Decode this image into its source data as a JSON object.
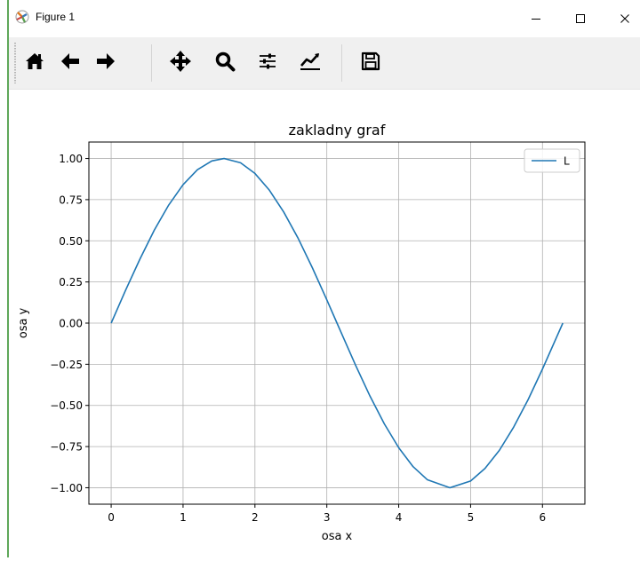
{
  "window": {
    "title": "Figure 1",
    "icons": {
      "app": "matplotlib-figure-icon",
      "minimize": "minimize-icon",
      "maximize": "maximize-icon",
      "close": "close-icon"
    }
  },
  "toolbar": {
    "buttons": [
      {
        "name": "home-button",
        "icon": "home-icon"
      },
      {
        "name": "back-button",
        "icon": "arrow-left-icon"
      },
      {
        "name": "forward-button",
        "icon": "arrow-right-icon"
      },
      {
        "name": "pan-button",
        "icon": "move-icon"
      },
      {
        "name": "zoom-button",
        "icon": "magnifier-icon"
      },
      {
        "name": "configure-subplots-button",
        "icon": "sliders-icon"
      },
      {
        "name": "edit-axes-button",
        "icon": "line-chart-icon"
      },
      {
        "name": "save-button",
        "icon": "floppy-disk-icon"
      }
    ]
  },
  "chart_data": {
    "type": "line",
    "title": "zakladny graf",
    "xlabel": "osa x",
    "ylabel": "osa y",
    "xlim": [
      -0.31,
      6.59
    ],
    "ylim": [
      -1.1,
      1.1
    ],
    "xticks": [
      0,
      1,
      2,
      3,
      4,
      5,
      6
    ],
    "xtick_labels": [
      "0",
      "1",
      "2",
      "3",
      "4",
      "5",
      "6"
    ],
    "yticks": [
      -1.0,
      -0.75,
      -0.5,
      -0.25,
      0.0,
      0.25,
      0.5,
      0.75,
      1.0
    ],
    "ytick_labels": [
      "−1.00",
      "−0.75",
      "−0.50",
      "−0.25",
      "0.00",
      "0.25",
      "0.50",
      "0.75",
      "1.00"
    ],
    "grid": true,
    "legend": {
      "position": "upper-right",
      "entries": [
        "L"
      ]
    },
    "series": [
      {
        "name": "L",
        "color": "#1f77b4",
        "x": [
          0,
          0.2,
          0.4,
          0.6,
          0.8,
          1.0,
          1.2,
          1.4,
          1.5708,
          1.8,
          2.0,
          2.2,
          2.4,
          2.6,
          2.8,
          3.0,
          3.1416,
          3.4,
          3.6,
          3.8,
          4.0,
          4.2,
          4.4,
          4.7124,
          5.0,
          5.2,
          5.4,
          5.6,
          5.8,
          6.0,
          6.2832
        ],
        "y": [
          0,
          0.199,
          0.389,
          0.565,
          0.717,
          0.841,
          0.932,
          0.985,
          1.0,
          0.974,
          0.909,
          0.808,
          0.675,
          0.516,
          0.335,
          0.141,
          0.0,
          -0.256,
          -0.443,
          -0.612,
          -0.757,
          -0.872,
          -0.952,
          -1.0,
          -0.959,
          -0.883,
          -0.773,
          -0.631,
          -0.465,
          -0.279,
          0.0
        ]
      }
    ]
  }
}
